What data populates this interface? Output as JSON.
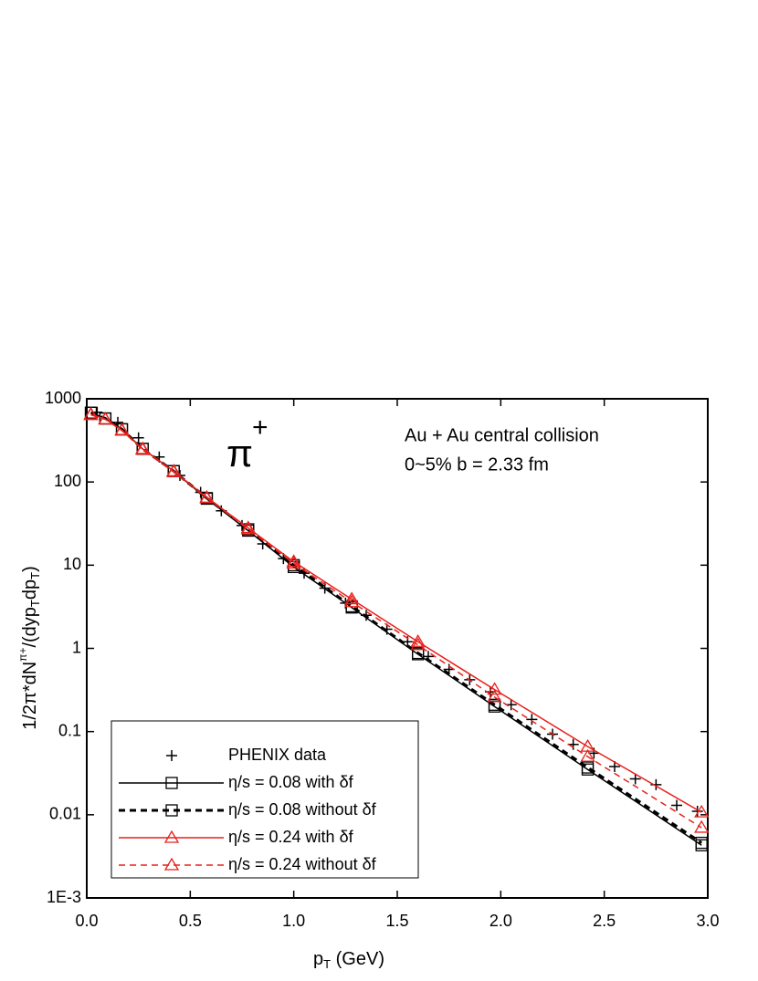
{
  "chart_data": {
    "type": "line",
    "xlabel": [
      "p",
      "T",
      " (GeV)"
    ],
    "ylabel": [
      "1/2π*dN",
      "π+",
      "/(dyp",
      "T",
      "dp",
      "T",
      ")"
    ],
    "annotations": {
      "particle": [
        "π",
        "+"
      ],
      "system": "Au + Au central collision",
      "centrality": "0~5% b = 2.33 fm"
    },
    "xlim": [
      0,
      3
    ],
    "xticks": [
      {
        "value": 0,
        "label": "0.0"
      },
      0.5,
      {
        "value": 1,
        "label": "1.0"
      },
      1.5,
      {
        "value": 2,
        "label": "2.0"
      },
      2.5,
      {
        "value": 3,
        "label": "3.0"
      }
    ],
    "ylim": [
      0.001,
      1000
    ],
    "ylog": true,
    "yticks": [
      {
        "value": 0.001,
        "label": "1E-3"
      },
      0.01,
      0.1,
      1,
      10,
      100,
      1000
    ],
    "legend_position": "lower left",
    "series": [
      {
        "name": "PHENIX data",
        "color": "#000000",
        "marker": "plus",
        "line": "none",
        "x": [
          0.05,
          0.15,
          0.25,
          0.35,
          0.45,
          0.55,
          0.65,
          0.75,
          0.85,
          0.95,
          1.05,
          1.15,
          1.25,
          1.35,
          1.45,
          1.55,
          1.65,
          1.75,
          1.85,
          1.95,
          2.05,
          2.15,
          2.25,
          2.35,
          2.45,
          2.55,
          2.65,
          2.75,
          2.85,
          2.95
        ],
        "values": [
          690,
          520,
          340,
          200,
          120,
          75,
          45,
          30,
          18,
          12,
          8,
          5.3,
          3.5,
          2.5,
          1.7,
          1.2,
          0.8,
          0.56,
          0.42,
          0.3,
          0.21,
          0.14,
          0.093,
          0.07,
          0.055,
          0.038,
          0.027,
          0.023,
          0.013,
          0.011
        ]
      },
      {
        "name": "η/s = 0.08 with δf",
        "color": "#000000",
        "marker": "square",
        "line": "solid",
        "x": [
          0.02,
          0.09,
          0.17,
          0.27,
          0.42,
          0.58,
          0.78,
          1.0,
          1.28,
          1.6,
          1.97,
          2.42,
          2.97
        ],
        "values": [
          680,
          580,
          430,
          250,
          135,
          63,
          26,
          9.5,
          3.1,
          0.85,
          0.2,
          0.035,
          0.0043
        ]
      },
      {
        "name": "η/s = 0.08 without δf",
        "color": "#000000",
        "marker": "square",
        "line": "dashed",
        "x": [
          0.02,
          0.09,
          0.17,
          0.27,
          0.42,
          0.58,
          0.78,
          1.0,
          1.28,
          1.6,
          1.97,
          2.42,
          2.97
        ],
        "values": [
          680,
          580,
          430,
          250,
          135,
          64,
          27,
          10,
          3.2,
          0.88,
          0.21,
          0.037,
          0.0046
        ]
      },
      {
        "name": "η/s = 0.24 with δf",
        "color": "#e8201b",
        "marker": "triangle",
        "line": "solid",
        "x": [
          0.02,
          0.09,
          0.17,
          0.27,
          0.42,
          0.58,
          0.78,
          1.0,
          1.28,
          1.6,
          1.97,
          2.42,
          2.97
        ],
        "values": [
          650,
          570,
          420,
          250,
          135,
          65,
          28,
          11,
          3.9,
          1.2,
          0.32,
          0.066,
          0.0107
        ]
      },
      {
        "name": "η/s = 0.24 without δf",
        "color": "#e8201b",
        "marker": "triangle",
        "line": "dashed",
        "x": [
          0.02,
          0.09,
          0.17,
          0.27,
          0.42,
          0.58,
          0.78,
          1.0,
          1.28,
          1.6,
          1.97,
          2.42,
          2.97
        ],
        "values": [
          640,
          565,
          415,
          245,
          132,
          64,
          27,
          10.5,
          3.6,
          1.1,
          0.26,
          0.05,
          0.007
        ]
      }
    ]
  }
}
